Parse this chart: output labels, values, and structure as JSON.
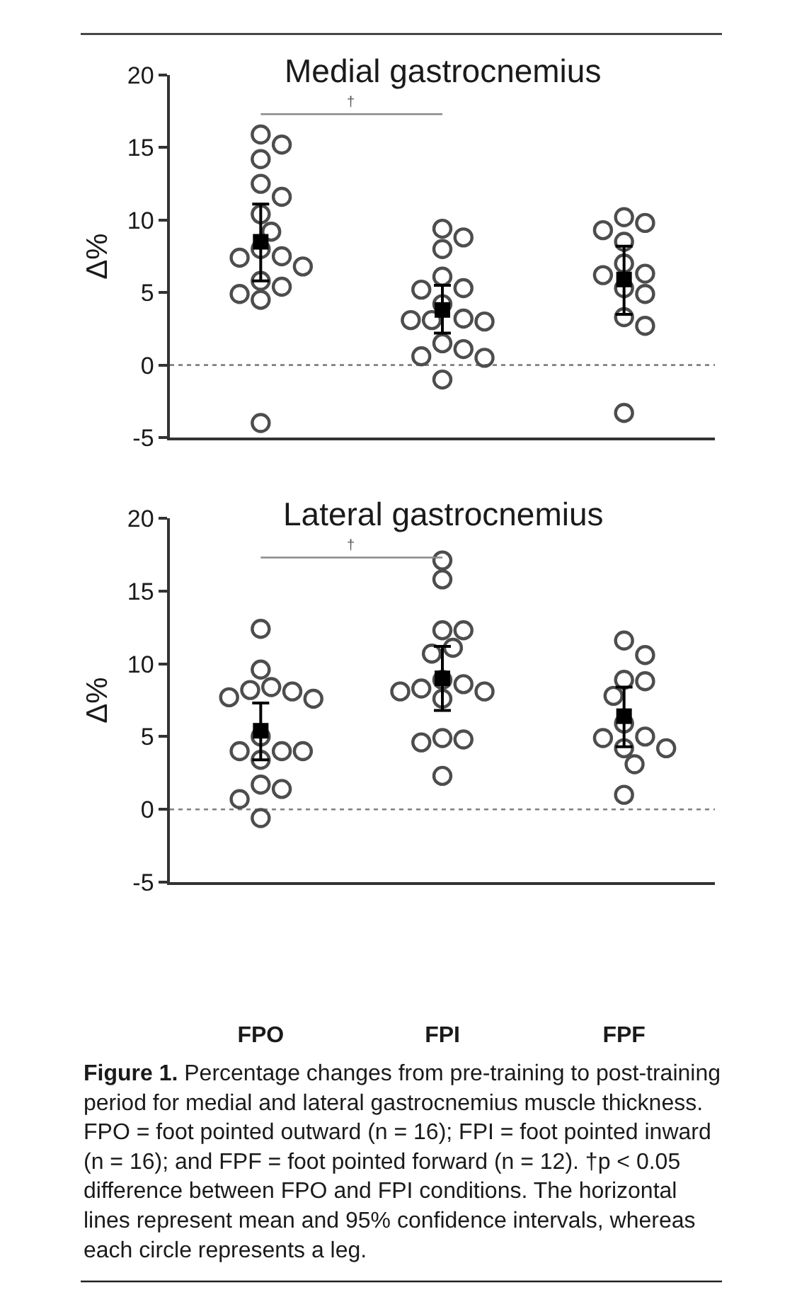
{
  "chart_data": [
    {
      "type": "scatter",
      "title": "Medial gastrocnemius",
      "ylabel": "Δ%",
      "categories": [
        "FPO",
        "FPI",
        "FPF"
      ],
      "ylim": [
        -5,
        20
      ],
      "yticks": [
        -5,
        0,
        5,
        10,
        15,
        20
      ],
      "tick_labels": "y",
      "series": [
        {
          "color": "#4d4d4d",
          "marker": "circle",
          "x": [
            "FPO",
            "FPO",
            "FPO",
            "FPO",
            "FPO",
            "FPO",
            "FPO",
            "FPO",
            "FPO",
            "FPO",
            "FPO",
            "FPO",
            "FPO",
            "FPO",
            "FPO",
            "FPO",
            "FPI",
            "FPI",
            "FPI",
            "FPI",
            "FPI",
            "FPI",
            "FPI",
            "FPI",
            "FPI",
            "FPI",
            "FPI",
            "FPI",
            "FPI",
            "FPI",
            "FPI",
            "FPI",
            "FPF",
            "FPF",
            "FPF",
            "FPF",
            "FPF",
            "FPF",
            "FPF",
            "FPF",
            "FPF",
            "FPF",
            "FPF",
            "FPF"
          ],
          "values": [
            15.2,
            15.9,
            14.2,
            12.5,
            11.6,
            10.4,
            9.2,
            8.0,
            7.5,
            7.4,
            6.8,
            5.8,
            5.4,
            4.9,
            4.5,
            -4.0,
            9.4,
            8.8,
            8.0,
            6.1,
            5.3,
            5.2,
            4.2,
            3.1,
            3.0,
            3.1,
            3.2,
            1.5,
            1.1,
            0.6,
            0.5,
            -1.0,
            10.2,
            9.8,
            9.3,
            8.5,
            7.0,
            6.2,
            6.3,
            5.3,
            4.9,
            3.3,
            2.7,
            -3.3
          ]
        },
        {
          "color": "#000000",
          "marker": "square",
          "values": [
            8.5,
            3.8,
            5.9
          ],
          "errors": [
            [
              5.8,
              11.1
            ],
            [
              2.2,
              5.5
            ],
            [
              3.5,
              8.2
            ]
          ]
        }
      ],
      "ref_lines": [
        {
          "axis": "y",
          "value": 0,
          "line_style": "dotted",
          "color": "#808080"
        }
      ],
      "annotations": [
        "†"
      ]
    },
    {
      "type": "scatter",
      "title": "Lateral gastrocnemius",
      "ylabel": "Δ%",
      "categories": [
        "FPO",
        "FPI",
        "FPF"
      ],
      "ylim": [
        -5,
        20
      ],
      "yticks": [
        -5,
        0,
        5,
        10,
        15,
        20
      ],
      "series": [
        {
          "color": "#4d4d4d",
          "marker": "circle",
          "x": [
            "FPO",
            "FPO",
            "FPO",
            "FPO",
            "FPO",
            "FPO",
            "FPO",
            "FPO",
            "FPO",
            "FPO",
            "FPO",
            "FPO",
            "FPO",
            "FPO",
            "FPO",
            "FPO",
            "FPI",
            "FPI",
            "FPI",
            "FPI",
            "FPI",
            "FPI",
            "FPI",
            "FPI",
            "FPI",
            "FPI",
            "FPI",
            "FPI",
            "FPI",
            "FPI",
            "FPI",
            "FPI",
            "FPF",
            "FPF",
            "FPF",
            "FPF",
            "FPF",
            "FPF",
            "FPF",
            "FPF",
            "FPF",
            "FPF",
            "FPF",
            "FPF"
          ],
          "values": [
            12.4,
            9.6,
            8.2,
            8.4,
            7.7,
            8.1,
            7.6,
            5.0,
            4.0,
            4.0,
            4.0,
            3.4,
            1.7,
            1.4,
            0.7,
            -0.6,
            17.1,
            15.8,
            12.3,
            12.3,
            11.1,
            10.7,
            8.9,
            8.6,
            8.1,
            7.6,
            8.1,
            8.3,
            4.8,
            4.6,
            4.9,
            2.3,
            11.6,
            10.6,
            8.8,
            8.9,
            7.8,
            5.9,
            5.0,
            4.9,
            4.2,
            4.2,
            3.1,
            1.0
          ]
        },
        {
          "color": "#000000",
          "marker": "square",
          "values": [
            5.4,
            9.0,
            6.4
          ],
          "errors": [
            [
              3.4,
              7.3
            ],
            [
              6.8,
              11.2
            ],
            [
              4.3,
              8.4
            ]
          ]
        }
      ],
      "ref_lines": [
        {
          "axis": "y",
          "value": 0,
          "line_style": "dotted",
          "color": "#808080"
        }
      ],
      "annotations": [
        "†",
        "Figure 1. Percentage changes from pre-training to post-training period for medial and lateral gastrocnemius muscle thickness. FPO = foot pointed outward (n = 16); FPI = foot pointed inward (n = 16); and FPF = foot pointed forward (n = 12). †p < 0.05 difference between FPO and FPI conditions. The horizontal lines represent mean and 95% confidence intervals, whereas each circle represents a leg."
      ]
    }
  ]
}
